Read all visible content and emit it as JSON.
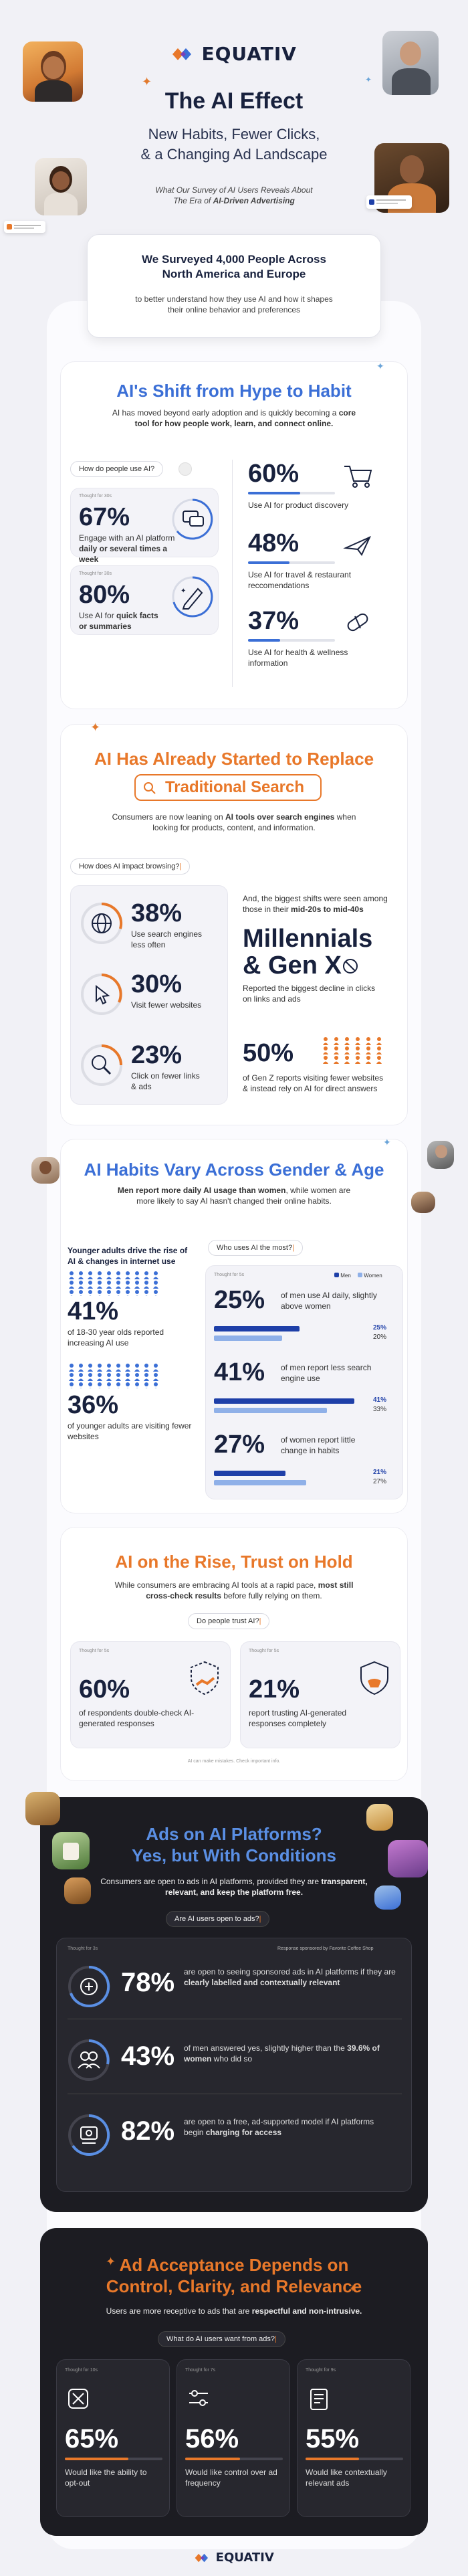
{
  "brand": "EQUATIV",
  "hero": {
    "title": "The AI Effect",
    "subtitle_lines": [
      "New Habits, Fewer Clicks,",
      "& a Changing Ad Landscape"
    ],
    "intro_line1": "What Our Survey of AI Users Reveals About",
    "intro_line2_a": "The Era of ",
    "intro_line2_b": "AI-Driven Advertising"
  },
  "survey": {
    "heading": "We Surveyed 4,000 People Across North America and Europe",
    "text": "to better understand how they use AI and how it shapes their online behavior and preferences"
  },
  "s1": {
    "title": "AI's Shift from Hype to Habit",
    "desc_a": "AI has moved beyond early adoption and is quickly becoming a ",
    "desc_b": "core tool for how people work, learn, and connect online.",
    "question": "How do people use AI?",
    "cards": [
      {
        "thought": "Thought for 30s",
        "value": "67%",
        "text_a": "Engage with an AI platform ",
        "text_b": "daily or several times a week"
      },
      {
        "thought": "Thought for 30s",
        "value": "80%",
        "text_a": "Use AI for ",
        "text_b": "quick facts or summaries"
      }
    ],
    "right": [
      {
        "value": "60%",
        "text": "Use AI for product discovery",
        "fill": 0.6,
        "icon": "cart-icon"
      },
      {
        "value": "48%",
        "text": "Use AI for travel & restaurant reccomendations",
        "fill": 0.48,
        "icon": "plane-icon"
      },
      {
        "value": "37%",
        "text": "Use AI for health & wellness information",
        "fill": 0.37,
        "icon": "pill-icon"
      }
    ]
  },
  "s2": {
    "title": "AI Has Already Started to Replace",
    "title_box": "Traditional Search",
    "desc_a": "Consumers are now leaning on ",
    "desc_b": "AI tools over search engines",
    "desc_c": " when looking for products, content, and information.",
    "question": "How does AI impact browsing?",
    "items": [
      {
        "value": "38%",
        "text": "Use search engines less often",
        "icon": "globe-icon"
      },
      {
        "value": "30%",
        "text": "Visit fewer websites",
        "icon": "cursor-icon"
      },
      {
        "value": "23%",
        "text": "Click on fewer links & ads",
        "icon": "magnifier-icon"
      }
    ],
    "shift_a": "And, the biggest shifts were seen among those in their ",
    "shift_b": "mid-20s to mid-40s",
    "gen_title_1": "Millennials",
    "gen_title_2": "& Gen X",
    "gen_text": "Reported the biggest decline in clicks on links and ads",
    "genz_value": "50%",
    "genz_text": "of Gen Z reports visiting fewer websites & instead rely on AI for direct answers"
  },
  "s3": {
    "title": "AI Habits Vary Across Gender & Age",
    "desc_a": "Men report more daily AI usage than women",
    "desc_b": ", while women are more likely to say AI hasn't changed their online habits.",
    "left_heading": "Younger adults drive the rise of AI & changes in internet use",
    "left_items": [
      {
        "value": "41%",
        "text": "of 18-30 year olds reported increasing AI use"
      },
      {
        "value": "36%",
        "text": "of younger adults are visiting fewer websites"
      }
    ],
    "question": "Who uses AI the most?",
    "thought": "Thought for 5s",
    "legend": [
      "Men",
      "Women"
    ],
    "rows": [
      {
        "value": "25%",
        "text": "of men use AI daily, slightly above women",
        "men": 25,
        "women": 20,
        "men_label": "25%",
        "women_label": "20%"
      },
      {
        "value": "41%",
        "text": "of men report less search engine use",
        "men": 41,
        "women": 33,
        "men_label": "41%",
        "women_label": "33%"
      },
      {
        "value": "27%",
        "text": "of women report little change in habits",
        "men": 21,
        "women": 27,
        "men_label": "21%",
        "women_label": "27%"
      }
    ]
  },
  "s4": {
    "title": "AI on the Rise, Trust on Hold",
    "desc_a": "While consumers are embracing AI tools at a rapid pace, ",
    "desc_b": "most still cross-check results",
    "desc_c": " before fully relying on them.",
    "question": "Do people trust AI?",
    "cards": [
      {
        "thought": "Thought for 5s",
        "value": "60%",
        "text": "of respondents double-check AI-generated responses"
      },
      {
        "thought": "Thought for 5s",
        "value": "21%",
        "text": "report trusting AI-generated responses completely"
      }
    ],
    "footnote": "AI can make mistakes. Check important info."
  },
  "s5": {
    "title_1": "Ads on AI Platforms?",
    "title_2": "Yes, but With Conditions",
    "desc_a": "Consumers are open to ads in AI platforms, provided they are ",
    "desc_b": "transparent, relevant, and keep the platform free.",
    "question": "Are AI users open to ads?",
    "thought": "Thought for 3s",
    "sponsor": "Response sponsored by Favorite Coffee Shop",
    "items": [
      {
        "value": "78%",
        "text_a": "are open to seeing sponsored ads in AI platforms if they are ",
        "text_b": "clearly labelled and contextually relevant",
        "icon": "badge-icon"
      },
      {
        "value": "43%",
        "text_a": "of men answered yes, slightly higher than the ",
        "text_b": "39.6% of women",
        "text_c": " who did so",
        "icon": "users-icon"
      },
      {
        "value": "82%",
        "text_a": "are open to a free, ad-supported model if AI platforms begin ",
        "text_b": "charging for access",
        "icon": "coin-icon"
      }
    ]
  },
  "s6": {
    "title_1": "Ad Acceptance Depends on",
    "title_2": "Control, Clarity, and Relevance",
    "desc_a": "Users are more receptive to ads that are ",
    "desc_b": "respectful and non-intrusive.",
    "question": "What do AI users want from ads?",
    "cards": [
      {
        "thought": "Thought for 10s",
        "value": "65%",
        "text": "Would like the ability to opt-out",
        "fill": 0.65,
        "icon": "opt-out-icon"
      },
      {
        "thought": "Thought for 7s",
        "value": "56%",
        "text": "Would like control over ad frequency",
        "fill": 0.56,
        "icon": "sliders-icon"
      },
      {
        "thought": "Thought for 9s",
        "value": "55%",
        "text": "Would like contextually relevant ads",
        "fill": 0.55,
        "icon": "document-icon"
      }
    ]
  },
  "colors": {
    "orange": "#e8782a",
    "blue": "#3b6fd6",
    "navy": "#18213d",
    "dark": "#1c1c22",
    "men": "#1e3fa8",
    "women": "#8fb0e8"
  }
}
